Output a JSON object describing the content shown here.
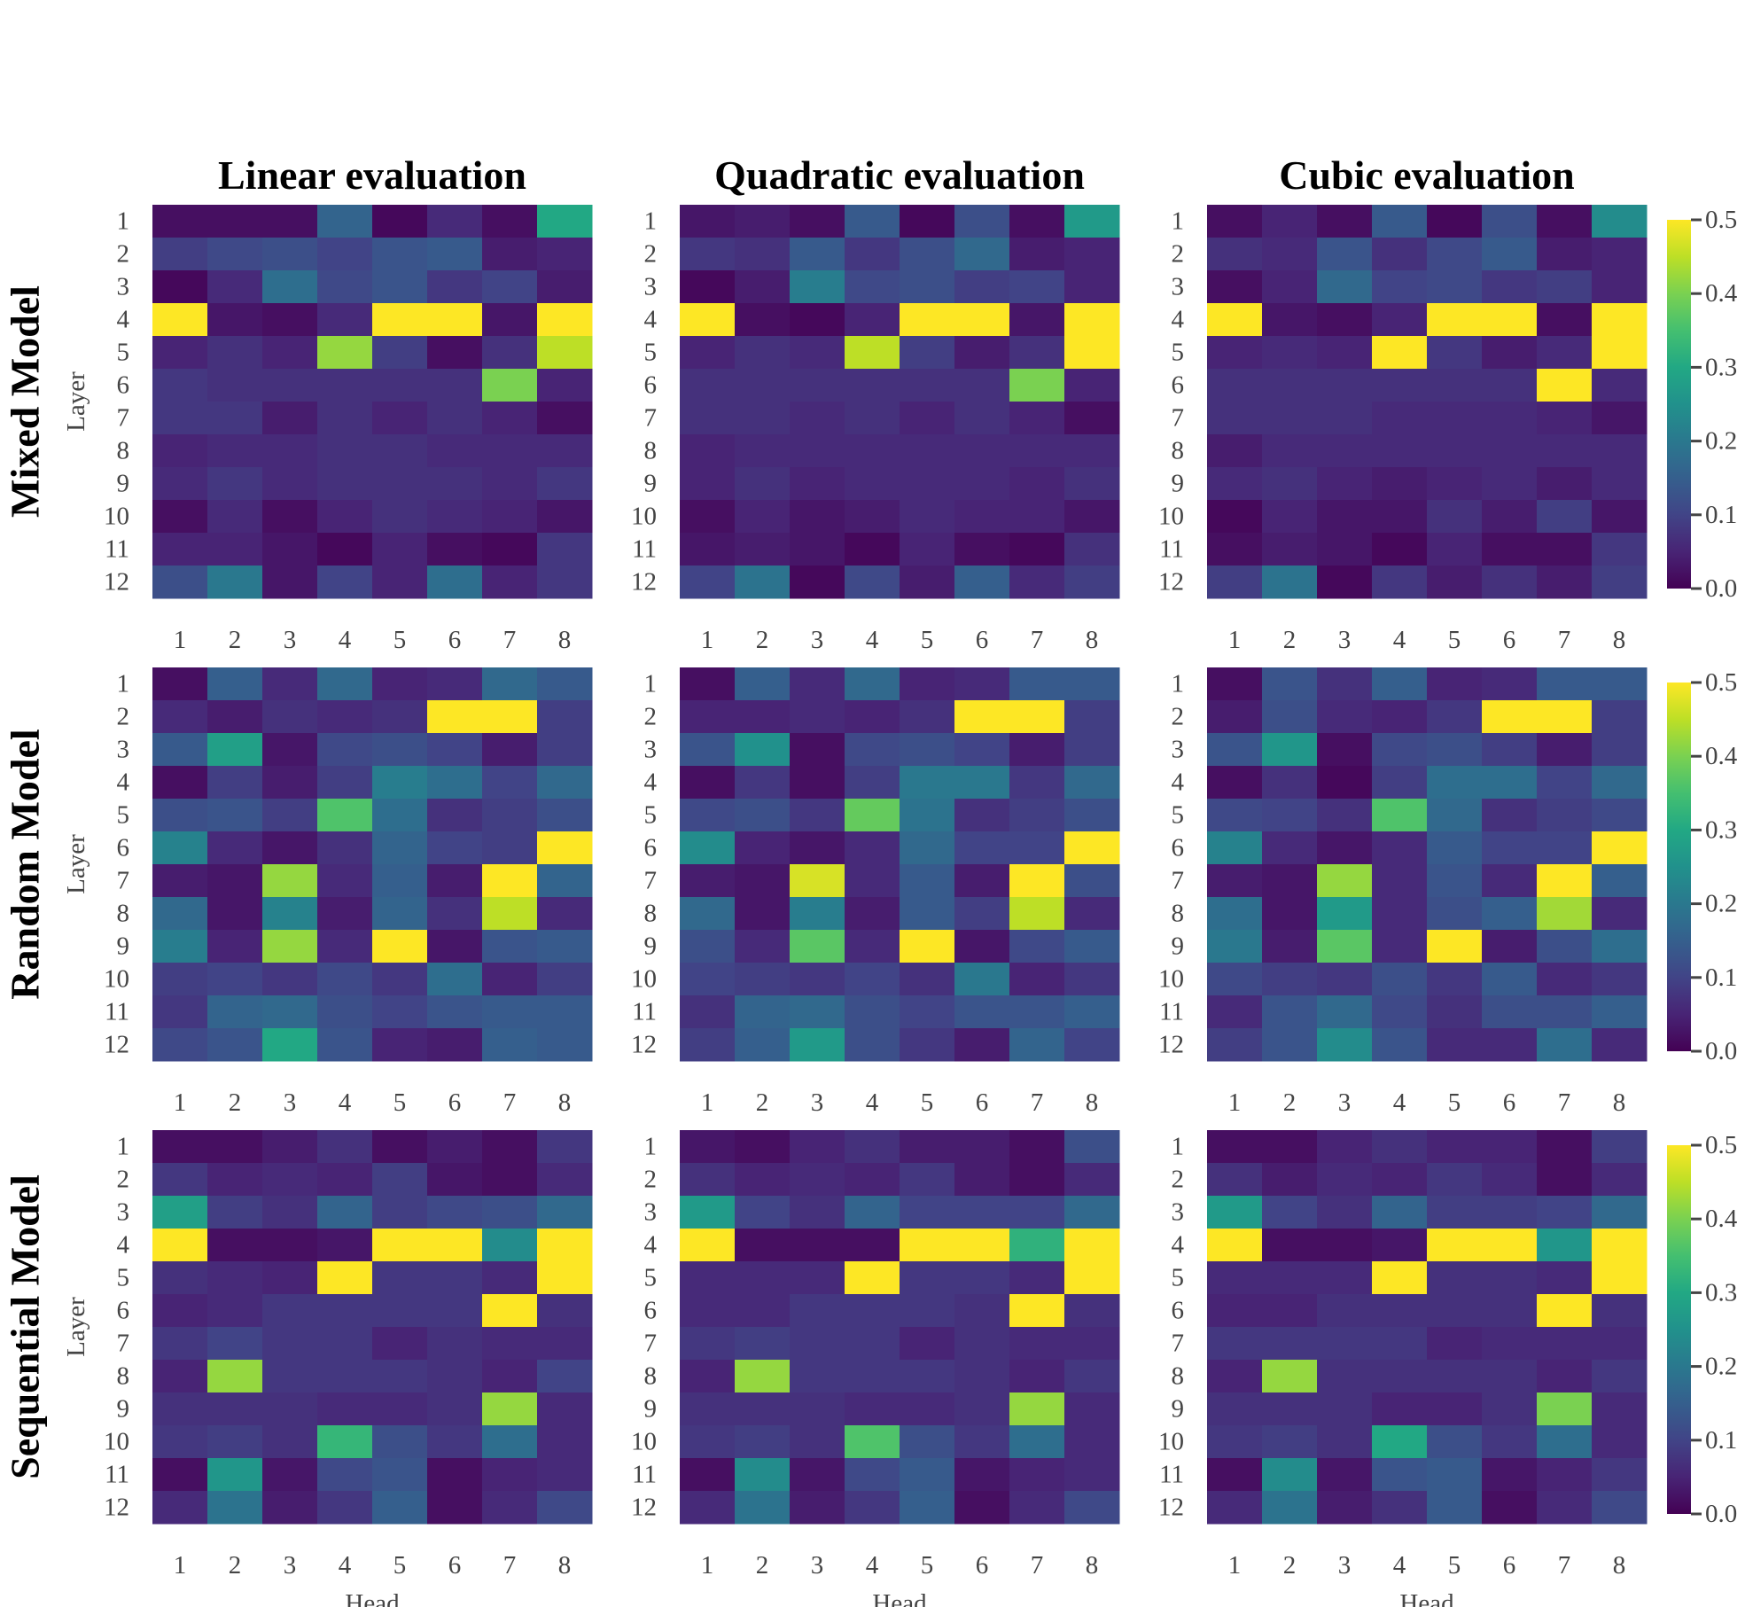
{
  "chart_data": {
    "type": "heatmap",
    "columns": [
      "Linear evaluation",
      "Quadratic evaluation",
      "Cubic evaluation"
    ],
    "rows": [
      "Mixed Model",
      "Random Model",
      "Sequential Model"
    ],
    "xlabel": "Head",
    "ylabel": "Layer",
    "x_ticks": [
      "1",
      "2",
      "3",
      "4",
      "5",
      "6",
      "7",
      "8"
    ],
    "y_ticks": [
      "1",
      "2",
      "3",
      "4",
      "5",
      "6",
      "7",
      "8",
      "9",
      "10",
      "11",
      "12"
    ],
    "colorbar": {
      "colormap": "viridis",
      "range": [
        0.0,
        0.5
      ],
      "ticks": [
        "0.0",
        "0.1",
        "0.2",
        "0.3",
        "0.4",
        "0.5"
      ]
    },
    "panels": [
      [
        [
          [
            0.02,
            0.02,
            0.02,
            0.16,
            0.01,
            0.06,
            0.02,
            0.3
          ],
          [
            0.09,
            0.11,
            0.12,
            0.1,
            0.13,
            0.14,
            0.04,
            0.05
          ],
          [
            0.01,
            0.06,
            0.18,
            0.11,
            0.13,
            0.08,
            0.1,
            0.04
          ],
          [
            0.5,
            0.03,
            0.02,
            0.06,
            0.5,
            0.5,
            0.03,
            0.5
          ],
          [
            0.05,
            0.07,
            0.05,
            0.42,
            0.09,
            0.02,
            0.07,
            0.45
          ],
          [
            0.08,
            0.07,
            0.07,
            0.07,
            0.07,
            0.07,
            0.4,
            0.05
          ],
          [
            0.08,
            0.08,
            0.04,
            0.07,
            0.05,
            0.07,
            0.05,
            0.02
          ],
          [
            0.05,
            0.06,
            0.06,
            0.07,
            0.07,
            0.06,
            0.06,
            0.06
          ],
          [
            0.06,
            0.08,
            0.06,
            0.07,
            0.07,
            0.07,
            0.06,
            0.08
          ],
          [
            0.02,
            0.06,
            0.02,
            0.05,
            0.07,
            0.06,
            0.05,
            0.03
          ],
          [
            0.05,
            0.05,
            0.03,
            0.01,
            0.05,
            0.02,
            0.01,
            0.08
          ],
          [
            0.12,
            0.2,
            0.03,
            0.1,
            0.05,
            0.18,
            0.05,
            0.08
          ]
        ],
        [
          [
            0.03,
            0.04,
            0.02,
            0.14,
            0.01,
            0.12,
            0.02,
            0.27
          ],
          [
            0.08,
            0.07,
            0.14,
            0.08,
            0.12,
            0.17,
            0.04,
            0.05
          ],
          [
            0.01,
            0.04,
            0.21,
            0.11,
            0.12,
            0.09,
            0.1,
            0.05
          ],
          [
            0.5,
            0.02,
            0.01,
            0.05,
            0.5,
            0.5,
            0.03,
            0.5
          ],
          [
            0.05,
            0.07,
            0.06,
            0.45,
            0.09,
            0.04,
            0.07,
            0.5
          ],
          [
            0.07,
            0.07,
            0.07,
            0.07,
            0.07,
            0.07,
            0.4,
            0.05
          ],
          [
            0.07,
            0.07,
            0.06,
            0.07,
            0.05,
            0.07,
            0.05,
            0.02
          ],
          [
            0.05,
            0.06,
            0.06,
            0.06,
            0.06,
            0.06,
            0.06,
            0.06
          ],
          [
            0.05,
            0.07,
            0.05,
            0.06,
            0.06,
            0.06,
            0.05,
            0.07
          ],
          [
            0.02,
            0.05,
            0.03,
            0.04,
            0.06,
            0.05,
            0.05,
            0.03
          ],
          [
            0.03,
            0.04,
            0.03,
            0.01,
            0.05,
            0.02,
            0.01,
            0.07
          ],
          [
            0.1,
            0.19,
            0.01,
            0.11,
            0.04,
            0.15,
            0.06,
            0.09
          ]
        ],
        [
          [
            0.02,
            0.05,
            0.02,
            0.14,
            0.01,
            0.12,
            0.02,
            0.24
          ],
          [
            0.07,
            0.06,
            0.13,
            0.07,
            0.11,
            0.14,
            0.04,
            0.05
          ],
          [
            0.02,
            0.05,
            0.17,
            0.1,
            0.11,
            0.08,
            0.09,
            0.05
          ],
          [
            0.5,
            0.03,
            0.02,
            0.05,
            0.5,
            0.5,
            0.02,
            0.5
          ],
          [
            0.05,
            0.06,
            0.05,
            0.5,
            0.08,
            0.04,
            0.06,
            0.5
          ],
          [
            0.07,
            0.07,
            0.07,
            0.07,
            0.07,
            0.07,
            0.5,
            0.06
          ],
          [
            0.07,
            0.07,
            0.07,
            0.06,
            0.06,
            0.06,
            0.05,
            0.03
          ],
          [
            0.04,
            0.06,
            0.06,
            0.06,
            0.06,
            0.06,
            0.06,
            0.06
          ],
          [
            0.06,
            0.07,
            0.05,
            0.04,
            0.05,
            0.06,
            0.04,
            0.06
          ],
          [
            0.01,
            0.05,
            0.03,
            0.03,
            0.07,
            0.04,
            0.09,
            0.03
          ],
          [
            0.02,
            0.04,
            0.03,
            0.01,
            0.05,
            0.02,
            0.02,
            0.08
          ],
          [
            0.09,
            0.19,
            0.01,
            0.08,
            0.04,
            0.07,
            0.04,
            0.09
          ]
        ]
      ],
      [
        [
          [
            0.02,
            0.15,
            0.06,
            0.17,
            0.05,
            0.06,
            0.17,
            0.14
          ],
          [
            0.06,
            0.04,
            0.07,
            0.06,
            0.07,
            0.5,
            0.5,
            0.09
          ],
          [
            0.14,
            0.28,
            0.03,
            0.11,
            0.12,
            0.1,
            0.04,
            0.09
          ],
          [
            0.02,
            0.09,
            0.04,
            0.09,
            0.21,
            0.18,
            0.1,
            0.17
          ],
          [
            0.12,
            0.13,
            0.09,
            0.36,
            0.18,
            0.07,
            0.09,
            0.12
          ],
          [
            0.22,
            0.06,
            0.03,
            0.07,
            0.16,
            0.1,
            0.09,
            0.5
          ],
          [
            0.04,
            0.03,
            0.42,
            0.06,
            0.15,
            0.04,
            0.5,
            0.16
          ],
          [
            0.17,
            0.03,
            0.22,
            0.04,
            0.16,
            0.07,
            0.45,
            0.06
          ],
          [
            0.21,
            0.05,
            0.42,
            0.06,
            0.5,
            0.03,
            0.13,
            0.14
          ],
          [
            0.09,
            0.1,
            0.08,
            0.11,
            0.08,
            0.18,
            0.05,
            0.09
          ],
          [
            0.08,
            0.16,
            0.17,
            0.12,
            0.1,
            0.13,
            0.14,
            0.14
          ],
          [
            0.11,
            0.13,
            0.3,
            0.13,
            0.05,
            0.04,
            0.15,
            0.14
          ]
        ],
        [
          [
            0.02,
            0.15,
            0.06,
            0.17,
            0.05,
            0.06,
            0.14,
            0.14
          ],
          [
            0.05,
            0.05,
            0.06,
            0.05,
            0.07,
            0.5,
            0.5,
            0.09
          ],
          [
            0.13,
            0.25,
            0.02,
            0.11,
            0.12,
            0.1,
            0.04,
            0.09
          ],
          [
            0.02,
            0.08,
            0.02,
            0.09,
            0.2,
            0.2,
            0.08,
            0.17
          ],
          [
            0.11,
            0.12,
            0.08,
            0.38,
            0.19,
            0.07,
            0.09,
            0.12
          ],
          [
            0.24,
            0.05,
            0.03,
            0.06,
            0.17,
            0.1,
            0.1,
            0.5
          ],
          [
            0.04,
            0.03,
            0.47,
            0.06,
            0.14,
            0.04,
            0.5,
            0.12
          ],
          [
            0.17,
            0.03,
            0.21,
            0.04,
            0.14,
            0.09,
            0.45,
            0.06
          ],
          [
            0.12,
            0.06,
            0.37,
            0.06,
            0.5,
            0.03,
            0.11,
            0.14
          ],
          [
            0.1,
            0.09,
            0.08,
            0.1,
            0.07,
            0.2,
            0.05,
            0.08
          ],
          [
            0.07,
            0.16,
            0.17,
            0.12,
            0.1,
            0.13,
            0.13,
            0.15
          ],
          [
            0.09,
            0.15,
            0.27,
            0.12,
            0.08,
            0.04,
            0.16,
            0.1
          ]
        ],
        [
          [
            0.02,
            0.13,
            0.07,
            0.15,
            0.05,
            0.06,
            0.14,
            0.14
          ],
          [
            0.04,
            0.12,
            0.06,
            0.05,
            0.08,
            0.5,
            0.5,
            0.09
          ],
          [
            0.13,
            0.26,
            0.02,
            0.11,
            0.12,
            0.09,
            0.04,
            0.09
          ],
          [
            0.02,
            0.07,
            0.01,
            0.09,
            0.18,
            0.18,
            0.1,
            0.17
          ],
          [
            0.11,
            0.1,
            0.07,
            0.36,
            0.17,
            0.07,
            0.09,
            0.11
          ],
          [
            0.22,
            0.06,
            0.03,
            0.06,
            0.14,
            0.1,
            0.1,
            0.5
          ],
          [
            0.04,
            0.03,
            0.42,
            0.06,
            0.13,
            0.06,
            0.5,
            0.15
          ],
          [
            0.18,
            0.03,
            0.27,
            0.06,
            0.12,
            0.15,
            0.43,
            0.06
          ],
          [
            0.2,
            0.04,
            0.37,
            0.06,
            0.5,
            0.04,
            0.12,
            0.18
          ],
          [
            0.11,
            0.09,
            0.08,
            0.12,
            0.08,
            0.14,
            0.06,
            0.08
          ],
          [
            0.06,
            0.13,
            0.17,
            0.11,
            0.07,
            0.12,
            0.12,
            0.15
          ],
          [
            0.09,
            0.13,
            0.24,
            0.13,
            0.06,
            0.06,
            0.18,
            0.06
          ]
        ]
      ],
      [
        [
          [
            0.02,
            0.02,
            0.04,
            0.07,
            0.02,
            0.04,
            0.02,
            0.08
          ],
          [
            0.08,
            0.05,
            0.06,
            0.05,
            0.09,
            0.03,
            0.02,
            0.06
          ],
          [
            0.28,
            0.09,
            0.07,
            0.16,
            0.09,
            0.11,
            0.12,
            0.17
          ],
          [
            0.5,
            0.02,
            0.02,
            0.03,
            0.5,
            0.5,
            0.24,
            0.5
          ],
          [
            0.07,
            0.06,
            0.05,
            0.5,
            0.08,
            0.08,
            0.06,
            0.5
          ],
          [
            0.05,
            0.06,
            0.08,
            0.08,
            0.08,
            0.08,
            0.5,
            0.07
          ],
          [
            0.08,
            0.1,
            0.08,
            0.08,
            0.05,
            0.07,
            0.06,
            0.06
          ],
          [
            0.05,
            0.42,
            0.08,
            0.08,
            0.08,
            0.07,
            0.05,
            0.1
          ],
          [
            0.07,
            0.07,
            0.07,
            0.06,
            0.06,
            0.07,
            0.42,
            0.06
          ],
          [
            0.08,
            0.09,
            0.07,
            0.33,
            0.12,
            0.08,
            0.18,
            0.06
          ],
          [
            0.02,
            0.26,
            0.03,
            0.11,
            0.13,
            0.02,
            0.05,
            0.06
          ],
          [
            0.06,
            0.19,
            0.04,
            0.08,
            0.15,
            0.02,
            0.06,
            0.11
          ]
        ],
        [
          [
            0.03,
            0.02,
            0.05,
            0.07,
            0.04,
            0.04,
            0.02,
            0.12
          ],
          [
            0.07,
            0.05,
            0.06,
            0.05,
            0.08,
            0.04,
            0.02,
            0.06
          ],
          [
            0.27,
            0.1,
            0.07,
            0.16,
            0.1,
            0.1,
            0.1,
            0.17
          ],
          [
            0.5,
            0.02,
            0.02,
            0.02,
            0.5,
            0.5,
            0.32,
            0.5
          ],
          [
            0.06,
            0.06,
            0.06,
            0.5,
            0.08,
            0.08,
            0.06,
            0.5
          ],
          [
            0.06,
            0.06,
            0.08,
            0.08,
            0.08,
            0.07,
            0.5,
            0.07
          ],
          [
            0.08,
            0.09,
            0.08,
            0.08,
            0.05,
            0.07,
            0.06,
            0.06
          ],
          [
            0.05,
            0.42,
            0.08,
            0.08,
            0.08,
            0.07,
            0.05,
            0.08
          ],
          [
            0.07,
            0.07,
            0.07,
            0.06,
            0.06,
            0.07,
            0.42,
            0.06
          ],
          [
            0.08,
            0.09,
            0.07,
            0.36,
            0.12,
            0.08,
            0.18,
            0.06
          ],
          [
            0.02,
            0.24,
            0.03,
            0.11,
            0.14,
            0.03,
            0.05,
            0.06
          ],
          [
            0.06,
            0.19,
            0.04,
            0.08,
            0.15,
            0.02,
            0.06,
            0.11
          ]
        ],
        [
          [
            0.02,
            0.02,
            0.05,
            0.07,
            0.05,
            0.05,
            0.02,
            0.09
          ],
          [
            0.07,
            0.04,
            0.06,
            0.05,
            0.08,
            0.06,
            0.02,
            0.06
          ],
          [
            0.27,
            0.1,
            0.07,
            0.16,
            0.09,
            0.09,
            0.1,
            0.17
          ],
          [
            0.5,
            0.02,
            0.02,
            0.03,
            0.5,
            0.5,
            0.26,
            0.5
          ],
          [
            0.06,
            0.06,
            0.06,
            0.5,
            0.07,
            0.07,
            0.06,
            0.5
          ],
          [
            0.05,
            0.05,
            0.07,
            0.07,
            0.07,
            0.07,
            0.5,
            0.07
          ],
          [
            0.08,
            0.08,
            0.08,
            0.08,
            0.05,
            0.06,
            0.06,
            0.06
          ],
          [
            0.05,
            0.42,
            0.07,
            0.07,
            0.07,
            0.07,
            0.05,
            0.08
          ],
          [
            0.07,
            0.07,
            0.07,
            0.05,
            0.05,
            0.07,
            0.4,
            0.06
          ],
          [
            0.08,
            0.09,
            0.07,
            0.3,
            0.12,
            0.08,
            0.18,
            0.06
          ],
          [
            0.02,
            0.24,
            0.03,
            0.13,
            0.14,
            0.03,
            0.05,
            0.08
          ],
          [
            0.06,
            0.19,
            0.04,
            0.07,
            0.14,
            0.02,
            0.06,
            0.11
          ]
        ]
      ]
    ]
  }
}
